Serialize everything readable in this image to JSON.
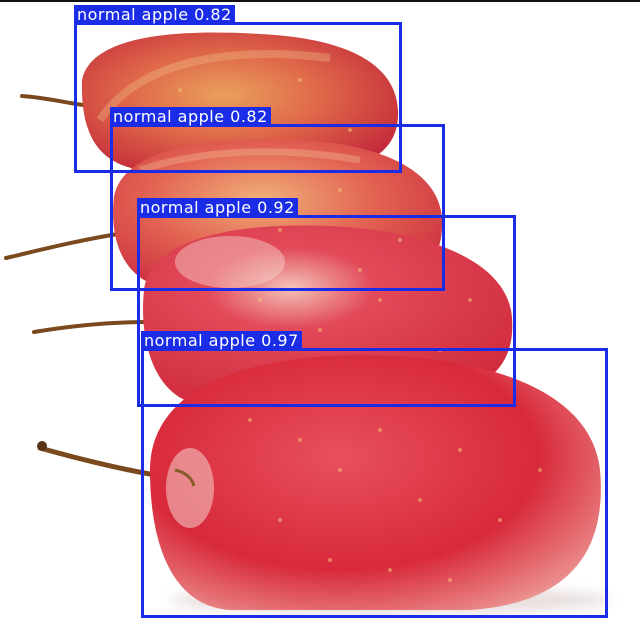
{
  "detections": [
    {
      "label": "normal apple 0.82"
    },
    {
      "label": "normal apple 0.82"
    },
    {
      "label": "normal apple 0.92"
    },
    {
      "label": "normal apple 0.97"
    }
  ],
  "colors": {
    "box": "#1a2ce6",
    "label_text": "#ffffff",
    "apple_red": "#d8293a",
    "apple_gold": "#e8a25a",
    "stem": "#7a4a1e"
  }
}
